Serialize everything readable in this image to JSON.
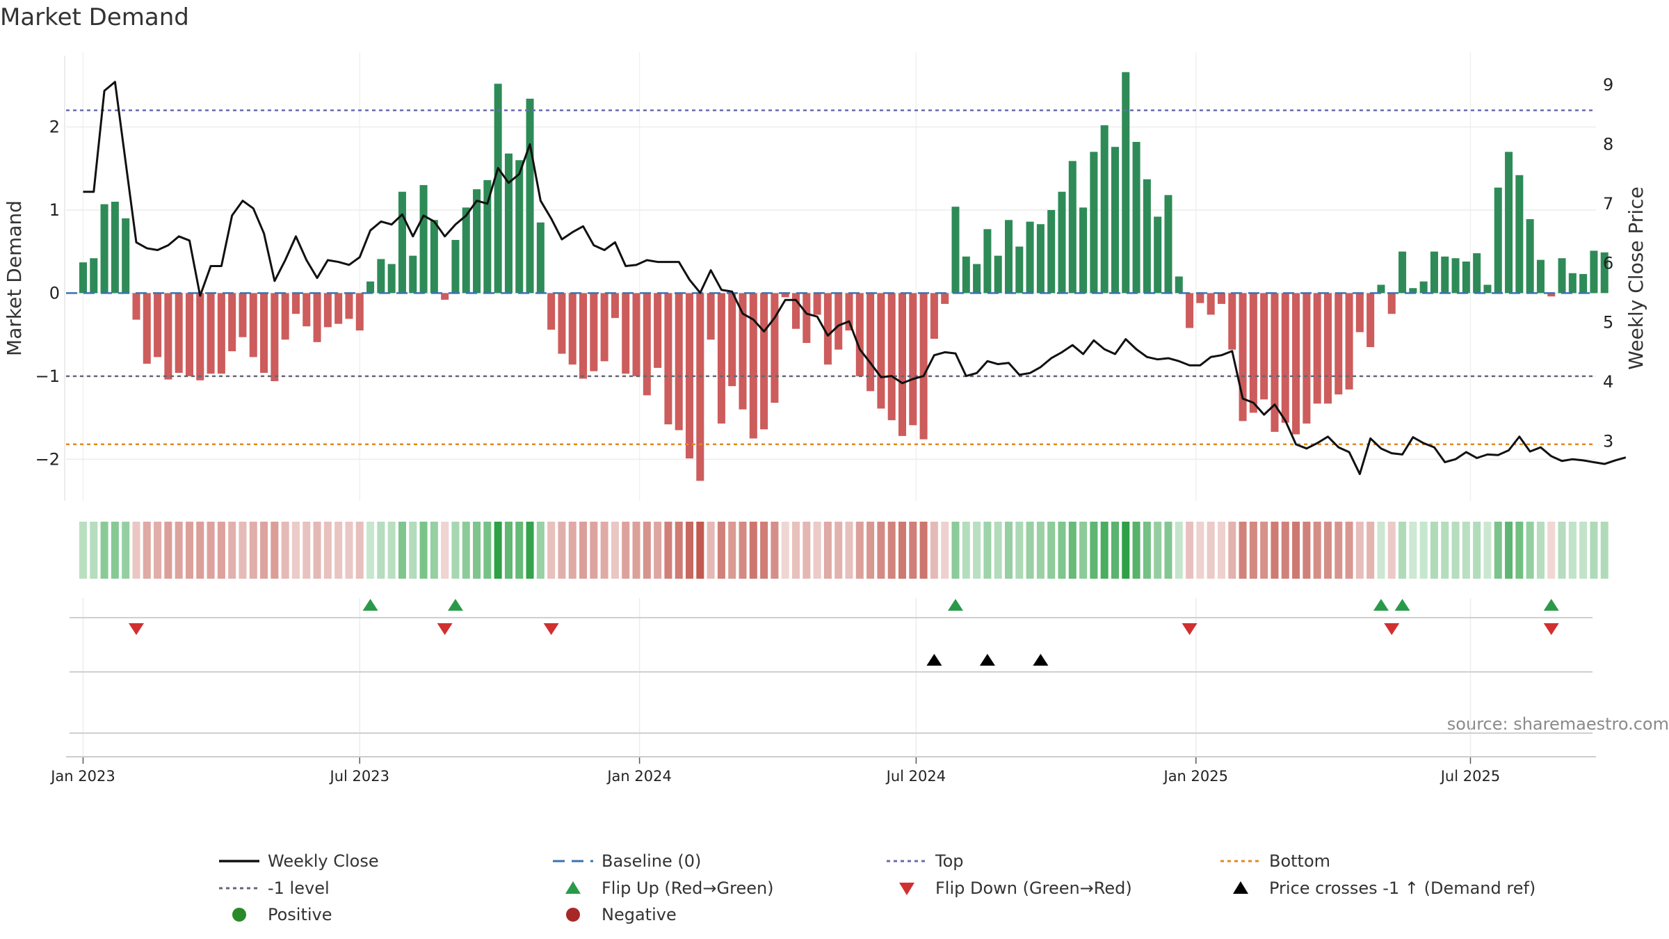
{
  "chart_data": {
    "type": "bar",
    "title": "Market Demand",
    "ylabel_left": "Market Demand",
    "ylabel_right": "Weekly Close Price",
    "ylim_left": [
      -2.5,
      2.9
    ],
    "ylim_right": [
      2.0,
      9.55
    ],
    "yticks_left": [
      2,
      1,
      0,
      -1,
      -2
    ],
    "yticks_left_labels": [
      "2",
      "1",
      "0",
      "−1",
      "−2"
    ],
    "yticks_right": [
      9,
      8,
      7,
      6,
      5,
      4,
      3
    ],
    "yticks_right_labels": [
      "9",
      "8",
      "7",
      "6",
      "5",
      "4",
      "3"
    ],
    "x_ticks": [
      {
        "label": "Jan 2023",
        "week": 0
      },
      {
        "label": "Jul 2023",
        "week": 26
      },
      {
        "label": "Jan 2024",
        "week": 52.3
      },
      {
        "label": "Jul 2024",
        "week": 78.3
      },
      {
        "label": "Jan 2025",
        "week": 104.6
      },
      {
        "label": "Jul 2025",
        "week": 130.4
      }
    ],
    "x_range": [
      -1.6,
      142.2
    ],
    "levels": {
      "top": 2.2,
      "minus_one": -1.0,
      "bottom": -1.82,
      "baseline": 0
    },
    "demand": [
      0.37,
      0.42,
      1.07,
      1.1,
      0.9,
      -0.32,
      -0.85,
      -0.77,
      -1.04,
      -0.96,
      -1.0,
      -1.05,
      -0.97,
      -0.97,
      -0.7,
      -0.53,
      -0.77,
      -0.96,
      -1.06,
      -0.56,
      -0.25,
      -0.4,
      -0.59,
      -0.41,
      -0.37,
      -0.31,
      -0.45,
      0.14,
      0.41,
      0.35,
      1.22,
      0.45,
      1.3,
      0.88,
      -0.08,
      0.64,
      1.03,
      1.25,
      1.36,
      2.52,
      1.68,
      1.6,
      2.34,
      0.85,
      -0.44,
      -0.73,
      -0.86,
      -1.03,
      -0.94,
      -0.82,
      -0.3,
      -0.97,
      -1.0,
      -1.23,
      -0.9,
      -1.58,
      -1.65,
      -1.99,
      -2.26,
      -0.56,
      -1.57,
      -1.12,
      -1.4,
      -1.75,
      -1.64,
      -1.32,
      -0.05,
      -0.43,
      -0.6,
      -0.26,
      -0.86,
      -0.68,
      -0.45,
      -1.0,
      -1.18,
      -1.39,
      -1.53,
      -1.72,
      -1.59,
      -1.76,
      -0.55,
      -0.13,
      1.04,
      0.44,
      0.35,
      0.77,
      0.45,
      0.88,
      0.56,
      0.86,
      0.83,
      1.0,
      1.22,
      1.59,
      1.03,
      1.7,
      2.02,
      1.76,
      2.66,
      1.82,
      1.37,
      0.92,
      1.18,
      0.2,
      -0.42,
      -0.12,
      -0.26,
      -0.13,
      -0.68,
      -1.54,
      -1.44,
      -1.28,
      -1.67,
      -1.56,
      -1.7,
      -1.57,
      -1.33,
      -1.33,
      -1.22,
      -1.16,
      -0.47,
      -0.65,
      0.1,
      -0.25,
      0.5,
      0.06,
      0.14,
      0.5,
      0.44,
      0.42,
      0.38,
      0.48,
      0.1,
      1.27,
      1.7,
      1.42,
      0.89,
      0.4,
      -0.04,
      0.42,
      0.24,
      0.23,
      0.51,
      0.49
    ],
    "weekly_close": [
      7.2,
      7.2,
      8.9,
      9.05,
      7.7,
      6.35,
      6.25,
      6.22,
      6.3,
      6.45,
      6.38,
      5.45,
      5.95,
      5.95,
      6.8,
      7.05,
      6.92,
      6.5,
      5.7,
      6.05,
      6.45,
      6.05,
      5.75,
      6.05,
      6.02,
      5.97,
      6.1,
      6.55,
      6.7,
      6.65,
      6.82,
      6.45,
      6.8,
      6.7,
      6.45,
      6.65,
      6.8,
      7.05,
      7.0,
      7.6,
      7.35,
      7.5,
      8.0,
      7.05,
      6.75,
      6.4,
      6.52,
      6.62,
      6.3,
      6.22,
      6.35,
      5.95,
      5.97,
      6.05,
      6.02,
      6.02,
      6.02,
      5.72,
      5.5,
      5.88,
      5.55,
      5.52,
      5.15,
      5.05,
      4.85,
      5.08,
      5.38,
      5.38,
      5.15,
      5.1,
      4.78,
      4.95,
      5.02,
      4.55,
      4.32,
      4.08,
      4.1,
      3.98,
      4.05,
      4.1,
      4.45,
      4.5,
      4.48,
      4.1,
      4.15,
      4.35,
      4.3,
      4.32,
      4.12,
      4.15,
      4.25,
      4.4,
      4.5,
      4.62,
      4.47,
      4.7,
      4.55,
      4.47,
      4.72,
      4.55,
      4.42,
      4.38,
      4.4,
      4.35,
      4.28,
      4.28,
      4.42,
      4.45,
      4.52,
      3.72,
      3.65,
      3.45,
      3.62,
      3.35,
      2.95,
      2.88,
      2.97,
      3.08,
      2.9,
      2.82,
      2.45,
      3.05,
      2.88,
      2.8,
      2.78,
      3.07,
      2.97,
      2.9,
      2.65,
      2.7,
      2.82,
      2.72,
      2.78,
      2.77,
      2.85,
      3.08,
      2.83,
      2.9,
      2.75,
      2.67,
      2.7,
      2.68,
      2.65,
      2.62,
      2.68,
      2.73
    ],
    "flip_up_weeks": [
      27,
      35,
      82,
      122,
      124,
      138
    ],
    "flip_down_weeks": [
      5,
      34,
      44,
      104,
      123,
      138
    ],
    "price_cross_weeks": [
      80,
      85,
      90
    ],
    "legend": [
      {
        "label": "Weekly Close",
        "kind": "line",
        "color": "#111111"
      },
      {
        "label": "Baseline (0)",
        "kind": "dash",
        "color": "#3a72b0"
      },
      {
        "label": "Top",
        "kind": "dot",
        "color": "#6a6ab0"
      },
      {
        "label": "Bottom",
        "kind": "dot",
        "color": "#e08a20"
      },
      {
        "label": "-1 level",
        "kind": "dot",
        "color": "#666677"
      },
      {
        "label": "Flip Up (Red→Green)",
        "kind": "tri-up",
        "color": "#2a9a4a"
      },
      {
        "label": "Flip Down (Green→Red)",
        "kind": "tri-down",
        "color": "#d03030"
      },
      {
        "label": "Price crosses -1 ↑ (Demand ref)",
        "kind": "tri-up",
        "color": "#000000"
      },
      {
        "label": "Positive",
        "kind": "dot-marker",
        "color": "#2a8a2a"
      },
      {
        "label": "Negative",
        "kind": "dot-marker",
        "color": "#a82828"
      }
    ],
    "colors": {
      "positive": "#2e8b57",
      "negative": "#cd5c5c",
      "price": "#111111",
      "grid": "#dddddd"
    }
  },
  "source": "source: sharemaestro.com"
}
